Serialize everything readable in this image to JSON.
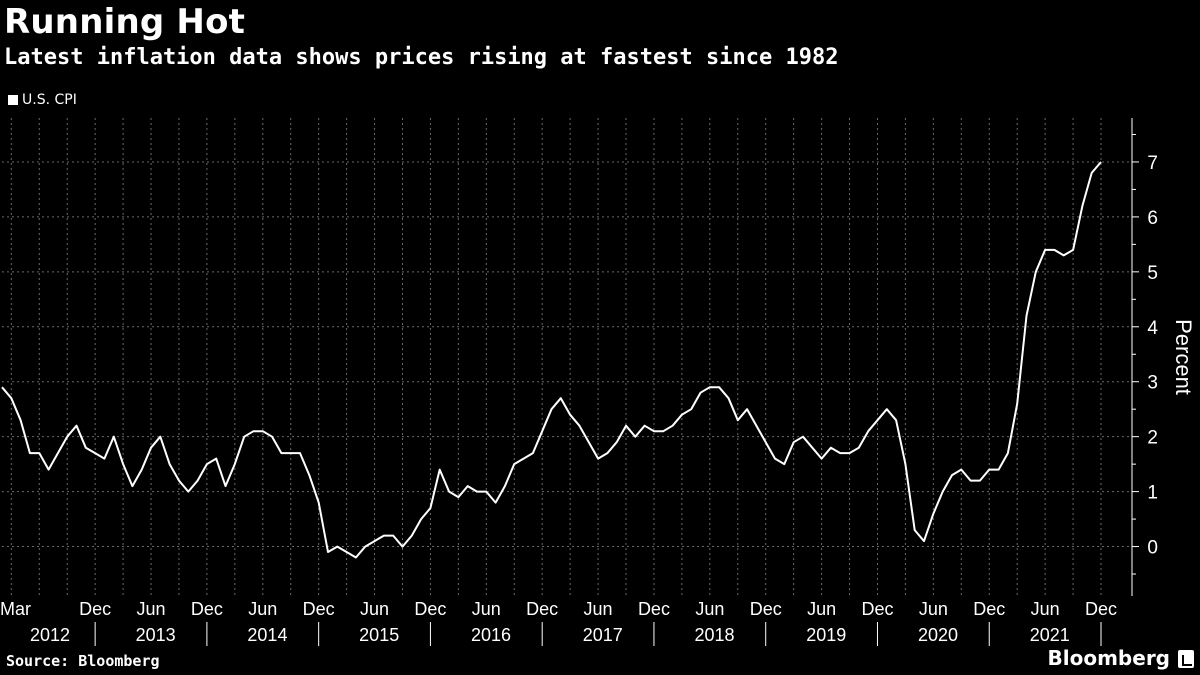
{
  "header": {
    "title": "Running Hot",
    "subtitle": "Latest inflation data shows prices rising at fastest since 1982"
  },
  "legend": {
    "label": "U.S. CPI"
  },
  "footer": {
    "source": "Source: Bloomberg",
    "brand": "Bloomberg"
  },
  "colors": {
    "background": "#000000",
    "line": "#ffffff",
    "grid": "#666666"
  },
  "chart_data": {
    "type": "line",
    "title": "Running Hot",
    "subtitle": "Latest inflation data shows prices rising at fastest since 1982",
    "ylabel": "Percent",
    "ylim": [
      -0.9,
      7.8
    ],
    "yticks": [
      0,
      1,
      2,
      3,
      4,
      5,
      6,
      7
    ],
    "grid": true,
    "legend_position": "top-left",
    "x_month_labels": [
      "Mar",
      "Dec",
      "Jun",
      "Dec",
      "Jun",
      "Dec",
      "Jun",
      "Dec",
      "Jun",
      "Dec",
      "Jun",
      "Dec",
      "Jun",
      "Dec",
      "Jun",
      "Dec",
      "Jun",
      "Dec",
      "Jun",
      "Dec"
    ],
    "x_year_labels": [
      "2012",
      "2013",
      "2014",
      "2015",
      "2016",
      "2017",
      "2018",
      "2019",
      "2020",
      "2021"
    ],
    "series": [
      {
        "name": "U.S. CPI",
        "x": [
          "2012-02",
          "2012-03",
          "2012-04",
          "2012-05",
          "2012-06",
          "2012-07",
          "2012-08",
          "2012-09",
          "2012-10",
          "2012-11",
          "2012-12",
          "2013-01",
          "2013-02",
          "2013-03",
          "2013-04",
          "2013-05",
          "2013-06",
          "2013-07",
          "2013-08",
          "2013-09",
          "2013-10",
          "2013-11",
          "2013-12",
          "2014-01",
          "2014-02",
          "2014-03",
          "2014-04",
          "2014-05",
          "2014-06",
          "2014-07",
          "2014-08",
          "2014-09",
          "2014-10",
          "2014-11",
          "2014-12",
          "2015-01",
          "2015-02",
          "2015-03",
          "2015-04",
          "2015-05",
          "2015-06",
          "2015-07",
          "2015-08",
          "2015-09",
          "2015-10",
          "2015-11",
          "2015-12",
          "2016-01",
          "2016-02",
          "2016-03",
          "2016-04",
          "2016-05",
          "2016-06",
          "2016-07",
          "2016-08",
          "2016-09",
          "2016-10",
          "2016-11",
          "2016-12",
          "2017-01",
          "2017-02",
          "2017-03",
          "2017-04",
          "2017-05",
          "2017-06",
          "2017-07",
          "2017-08",
          "2017-09",
          "2017-10",
          "2017-11",
          "2017-12",
          "2018-01",
          "2018-02",
          "2018-03",
          "2018-04",
          "2018-05",
          "2018-06",
          "2018-07",
          "2018-08",
          "2018-09",
          "2018-10",
          "2018-11",
          "2018-12",
          "2019-01",
          "2019-02",
          "2019-03",
          "2019-04",
          "2019-05",
          "2019-06",
          "2019-07",
          "2019-08",
          "2019-09",
          "2019-10",
          "2019-11",
          "2019-12",
          "2020-01",
          "2020-02",
          "2020-03",
          "2020-04",
          "2020-05",
          "2020-06",
          "2020-07",
          "2020-08",
          "2020-09",
          "2020-10",
          "2020-11",
          "2020-12",
          "2021-01",
          "2021-02",
          "2021-03",
          "2021-04",
          "2021-05",
          "2021-06",
          "2021-07",
          "2021-08",
          "2021-09",
          "2021-10",
          "2021-11",
          "2021-12"
        ],
        "values": [
          2.9,
          2.7,
          2.3,
          1.7,
          1.7,
          1.4,
          1.7,
          2.0,
          2.2,
          1.8,
          1.7,
          1.6,
          2.0,
          1.5,
          1.1,
          1.4,
          1.8,
          2.0,
          1.5,
          1.2,
          1.0,
          1.2,
          1.5,
          1.6,
          1.1,
          1.5,
          2.0,
          2.1,
          2.1,
          2.0,
          1.7,
          1.7,
          1.7,
          1.3,
          0.8,
          -0.1,
          0.0,
          -0.1,
          -0.2,
          0.0,
          0.1,
          0.2,
          0.2,
          0.0,
          0.2,
          0.5,
          0.7,
          1.4,
          1.0,
          0.9,
          1.1,
          1.0,
          1.0,
          0.8,
          1.1,
          1.5,
          1.6,
          1.7,
          2.1,
          2.5,
          2.7,
          2.4,
          2.2,
          1.9,
          1.6,
          1.7,
          1.9,
          2.2,
          2.0,
          2.2,
          2.1,
          2.1,
          2.2,
          2.4,
          2.5,
          2.8,
          2.9,
          2.9,
          2.7,
          2.3,
          2.5,
          2.2,
          1.9,
          1.6,
          1.5,
          1.9,
          2.0,
          1.8,
          1.6,
          1.8,
          1.7,
          1.7,
          1.8,
          2.1,
          2.3,
          2.5,
          2.3,
          1.5,
          0.3,
          0.1,
          0.6,
          1.0,
          1.3,
          1.4,
          1.2,
          1.2,
          1.4,
          1.4,
          1.7,
          2.6,
          4.2,
          5.0,
          5.4,
          5.4,
          5.3,
          5.4,
          6.2,
          6.8,
          7.0
        ]
      }
    ]
  }
}
